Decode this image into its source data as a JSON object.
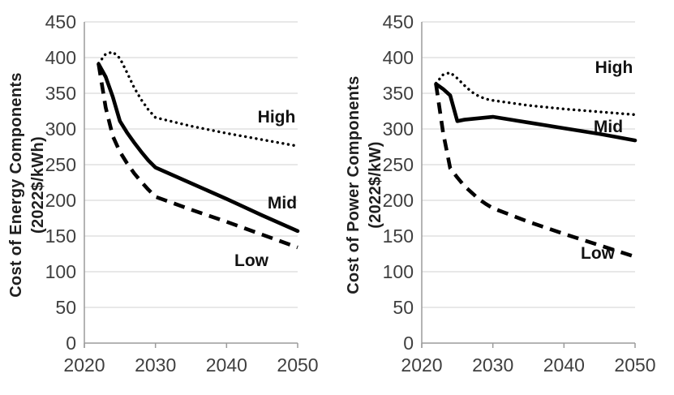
{
  "page": {
    "background": "#ffffff",
    "description": "Two-panel line chart of projected component costs, High/Mid/Low scenarios, 2022-2050"
  },
  "colors": {
    "series_line": "#000000",
    "gridline": "#d9d9d9",
    "axis_line": "#9b9b9b",
    "tick_text": "#3f3f3f",
    "label_text": "#121212"
  },
  "chart_data": [
    {
      "type": "line",
      "title": "",
      "ylabel_line1": "Cost of Energy Components",
      "ylabel_line2": "(2022$/kWh)",
      "xlabel": "",
      "xlim": [
        2020,
        2050
      ],
      "ylim": [
        0,
        450
      ],
      "xticks": [
        2020,
        2030,
        2040,
        2050
      ],
      "yticks": [
        0,
        50,
        100,
        150,
        200,
        250,
        300,
        350,
        400,
        450
      ],
      "grid": true,
      "legend_position": "inline-labels",
      "x": [
        2022,
        2023,
        2024,
        2025,
        2026,
        2027,
        2028,
        2029,
        2030,
        2035,
        2040,
        2045,
        2050
      ],
      "series": [
        {
          "name": "High",
          "style": "dotted",
          "values": [
            392,
            405,
            408,
            399,
            379,
            358,
            341,
            327,
            316,
            304,
            294,
            285,
            276
          ],
          "label_x": 341,
          "label_y": 151
        },
        {
          "name": "Low",
          "style": "dashed",
          "values": [
            391,
            330,
            290,
            268,
            252,
            238,
            226,
            215,
            205,
            187,
            170,
            152,
            134
          ],
          "label_x": 310,
          "label_y": 328
        },
        {
          "name": "Mid",
          "style": "solid",
          "values": [
            391,
            373,
            345,
            311,
            295,
            281,
            268,
            256,
            246,
            224,
            202,
            179,
            157
          ],
          "label_x": 348,
          "label_y": 257
        }
      ]
    },
    {
      "type": "line",
      "title": "",
      "ylabel_line1": "Cost of Power Components",
      "ylabel_line2": "(2022$/kW)",
      "xlabel": "",
      "xlim": [
        2020,
        2050
      ],
      "ylim": [
        0,
        450
      ],
      "xticks": [
        2020,
        2030,
        2040,
        2050
      ],
      "yticks": [
        0,
        50,
        100,
        150,
        200,
        250,
        300,
        350,
        400,
        450
      ],
      "grid": true,
      "legend_position": "inline-labels",
      "x": [
        2022,
        2023,
        2024,
        2025,
        2026,
        2027,
        2028,
        2029,
        2030,
        2035,
        2040,
        2045,
        2050
      ],
      "series": [
        {
          "name": "High",
          "style": "dotted",
          "values": [
            364,
            376,
            379,
            371,
            361,
            352,
            346,
            342,
            340,
            333,
            328,
            324,
            320
          ],
          "label_x": 341,
          "label_y": 90
        },
        {
          "name": "Low",
          "style": "dashed",
          "values": [
            363,
            295,
            245,
            232,
            220,
            211,
            202,
            195,
            189,
            170,
            153,
            137,
            121
          ],
          "label_x": 321,
          "label_y": 319
        },
        {
          "name": "Mid",
          "style": "solid",
          "values": [
            363,
            356,
            347,
            311,
            313,
            314,
            315,
            316,
            317,
            309,
            301,
            293,
            284
          ],
          "label_x": 334,
          "label_y": 163
        }
      ]
    }
  ]
}
